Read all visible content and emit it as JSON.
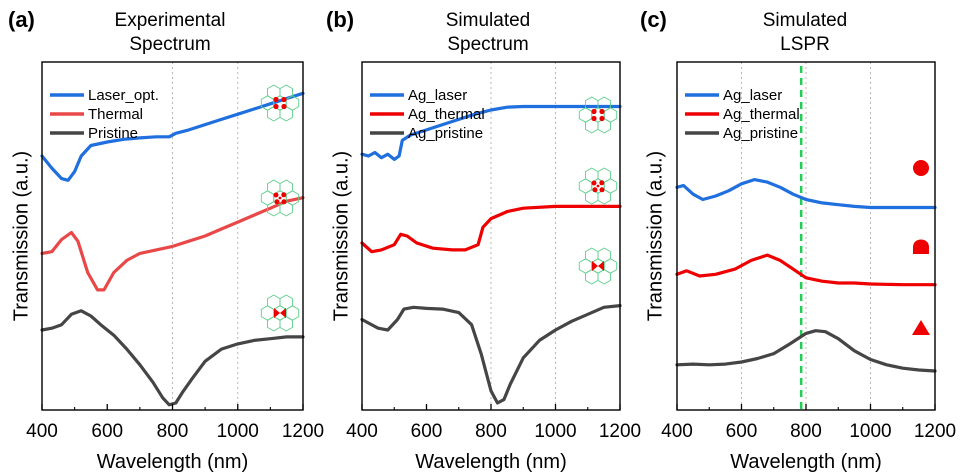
{
  "colors": {
    "blue": "#1f6fde",
    "light_red": "#e84848",
    "red": "#ee0000",
    "dark": "#454545",
    "marker_red": "#ee0000",
    "hex_line": "#5fcf8c",
    "guide_green": "#22cc55",
    "grid": "#b8b8b8"
  },
  "chart_data": [
    {
      "type": "line",
      "panel": "(a)",
      "title_lines": [
        "Experimental",
        "Spectrum"
      ],
      "xlabel": "Wavelength (nm)",
      "ylabel": "Transmission (a.u.)",
      "xlim": [
        400,
        1200
      ],
      "ylim": [
        0,
        10
      ],
      "x_ticks": [
        "400",
        "600",
        "800",
        "1000",
        "1200"
      ],
      "grid_x": [
        800,
        1000
      ],
      "legend_position": "top-left",
      "series": [
        {
          "name": "Laser_opt.",
          "color": "#1f6fde",
          "x": [
            400,
            430,
            460,
            480,
            500,
            520,
            550,
            600,
            650,
            700,
            750,
            790,
            810,
            850,
            900,
            950,
            1000,
            1050,
            1100,
            1150,
            1200
          ],
          "y": [
            7.3,
            6.95,
            6.65,
            6.6,
            6.85,
            7.3,
            7.6,
            7.7,
            7.78,
            7.82,
            7.85,
            7.85,
            7.95,
            8.05,
            8.2,
            8.35,
            8.5,
            8.65,
            8.8,
            8.95,
            9.1
          ],
          "icon": "hexagon-quad-icon"
        },
        {
          "name": "Thermal",
          "color": "#e84848",
          "x": [
            400,
            430,
            460,
            490,
            510,
            540,
            570,
            590,
            620,
            660,
            700,
            750,
            800,
            850,
            900,
            950,
            1000,
            1050,
            1100,
            1150,
            1200
          ],
          "y": [
            4.5,
            4.55,
            4.9,
            5.1,
            4.85,
            3.95,
            3.45,
            3.45,
            3.95,
            4.3,
            4.5,
            4.6,
            4.7,
            4.85,
            5.0,
            5.2,
            5.4,
            5.6,
            5.8,
            6.0,
            6.1
          ],
          "icon": "hexagon-triple-icon"
        },
        {
          "name": "Pristine",
          "color": "#454545",
          "x": [
            400,
            430,
            460,
            490,
            520,
            550,
            580,
            620,
            660,
            700,
            740,
            770,
            790,
            810,
            830,
            860,
            900,
            950,
            1000,
            1050,
            1100,
            1150,
            1200
          ],
          "y": [
            2.3,
            2.35,
            2.45,
            2.75,
            2.85,
            2.7,
            2.45,
            2.15,
            1.75,
            1.3,
            0.8,
            0.35,
            0.15,
            0.2,
            0.5,
            0.9,
            1.4,
            1.75,
            1.9,
            2.0,
            2.05,
            2.1,
            2.1
          ],
          "icon": "hexagon-bowtie-icon"
        }
      ]
    },
    {
      "type": "line",
      "panel": "(b)",
      "title_lines": [
        "Simulated",
        "Spectrum"
      ],
      "xlabel": "Wavelength (nm)",
      "ylabel": "Transmission (a.u.)",
      "xlim": [
        400,
        1200
      ],
      "ylim": [
        0,
        10
      ],
      "x_ticks": [
        "400",
        "600",
        "800",
        "1000",
        "1200"
      ],
      "grid_x": [
        800,
        1000
      ],
      "legend_position": "top-left",
      "series": [
        {
          "name": "Ag_laser",
          "color": "#1f6fde",
          "x": [
            400,
            420,
            440,
            460,
            480,
            500,
            515,
            525,
            550,
            600,
            650,
            700,
            750,
            800,
            850,
            900,
            1000,
            1100,
            1200
          ],
          "y": [
            7.35,
            7.3,
            7.4,
            7.25,
            7.35,
            7.2,
            7.3,
            7.75,
            7.9,
            8.05,
            8.2,
            8.35,
            8.5,
            8.62,
            8.7,
            8.72,
            8.72,
            8.72,
            8.72
          ],
          "icon": "hexagon-quad-icon"
        },
        {
          "name": "Ag_thermal",
          "color": "#ee0000",
          "x": [
            400,
            430,
            460,
            500,
            520,
            540,
            570,
            620,
            680,
            720,
            760,
            775,
            800,
            850,
            900,
            1000,
            1100,
            1200
          ],
          "y": [
            4.8,
            4.55,
            4.6,
            4.75,
            5.05,
            5.0,
            4.8,
            4.65,
            4.6,
            4.6,
            4.75,
            5.25,
            5.5,
            5.7,
            5.8,
            5.85,
            5.85,
            5.85
          ],
          "icon": "hexagon-triple-icon"
        },
        {
          "name": "Ag_pristine",
          "color": "#454545",
          "x": [
            400,
            420,
            450,
            480,
            510,
            530,
            560,
            600,
            650,
            700,
            740,
            770,
            800,
            820,
            840,
            860,
            900,
            950,
            1000,
            1050,
            1100,
            1150,
            1200
          ],
          "y": [
            2.6,
            2.5,
            2.35,
            2.3,
            2.6,
            2.9,
            2.95,
            2.92,
            2.9,
            2.8,
            2.45,
            1.6,
            0.55,
            0.2,
            0.3,
            0.75,
            1.5,
            2.0,
            2.3,
            2.55,
            2.75,
            2.95,
            3.0
          ],
          "icon": "hexagon-bowtie-icon"
        }
      ]
    },
    {
      "type": "line",
      "panel": "(c)",
      "title_lines": [
        "Simulated",
        "LSPR"
      ],
      "xlabel": "Wavelength (nm)",
      "ylabel": "Transmission (a.u.)",
      "xlim": [
        400,
        1200
      ],
      "ylim": [
        0,
        10
      ],
      "x_ticks": [
        "400",
        "600",
        "800",
        "1000",
        "1200"
      ],
      "grid_x": [
        600,
        800,
        1000
      ],
      "guide_line_x": 785,
      "legend_position": "top-left",
      "series": [
        {
          "name": "Ag_laser",
          "color": "#1f6fde",
          "x": [
            400,
            420,
            450,
            480,
            520,
            560,
            600,
            640,
            680,
            720,
            760,
            800,
            850,
            900,
            950,
            1000,
            1050,
            1100,
            1150,
            1200
          ],
          "y": [
            6.4,
            6.45,
            6.2,
            6.05,
            6.15,
            6.3,
            6.5,
            6.62,
            6.55,
            6.4,
            6.2,
            6.05,
            5.95,
            5.9,
            5.85,
            5.82,
            5.82,
            5.82,
            5.82,
            5.82
          ],
          "marker": "circle"
        },
        {
          "name": "Ag_thermal",
          "color": "#ee0000",
          "x": [
            400,
            430,
            470,
            520,
            580,
            630,
            680,
            720,
            760,
            800,
            850,
            900,
            950,
            1000,
            1100,
            1200
          ],
          "y": [
            3.9,
            4.0,
            3.85,
            3.9,
            4.05,
            4.3,
            4.45,
            4.3,
            4.05,
            3.8,
            3.7,
            3.65,
            3.65,
            3.62,
            3.6,
            3.6
          ],
          "marker": "half-dome"
        },
        {
          "name": "Ag_pristine",
          "color": "#454545",
          "x": [
            400,
            450,
            500,
            550,
            600,
            650,
            700,
            750,
            800,
            830,
            860,
            900,
            950,
            1000,
            1050,
            1100,
            1150,
            1200
          ],
          "y": [
            1.3,
            1.32,
            1.3,
            1.32,
            1.38,
            1.48,
            1.62,
            1.9,
            2.2,
            2.28,
            2.25,
            2.05,
            1.7,
            1.45,
            1.3,
            1.2,
            1.15,
            1.12
          ],
          "marker": "triangle"
        }
      ]
    }
  ]
}
